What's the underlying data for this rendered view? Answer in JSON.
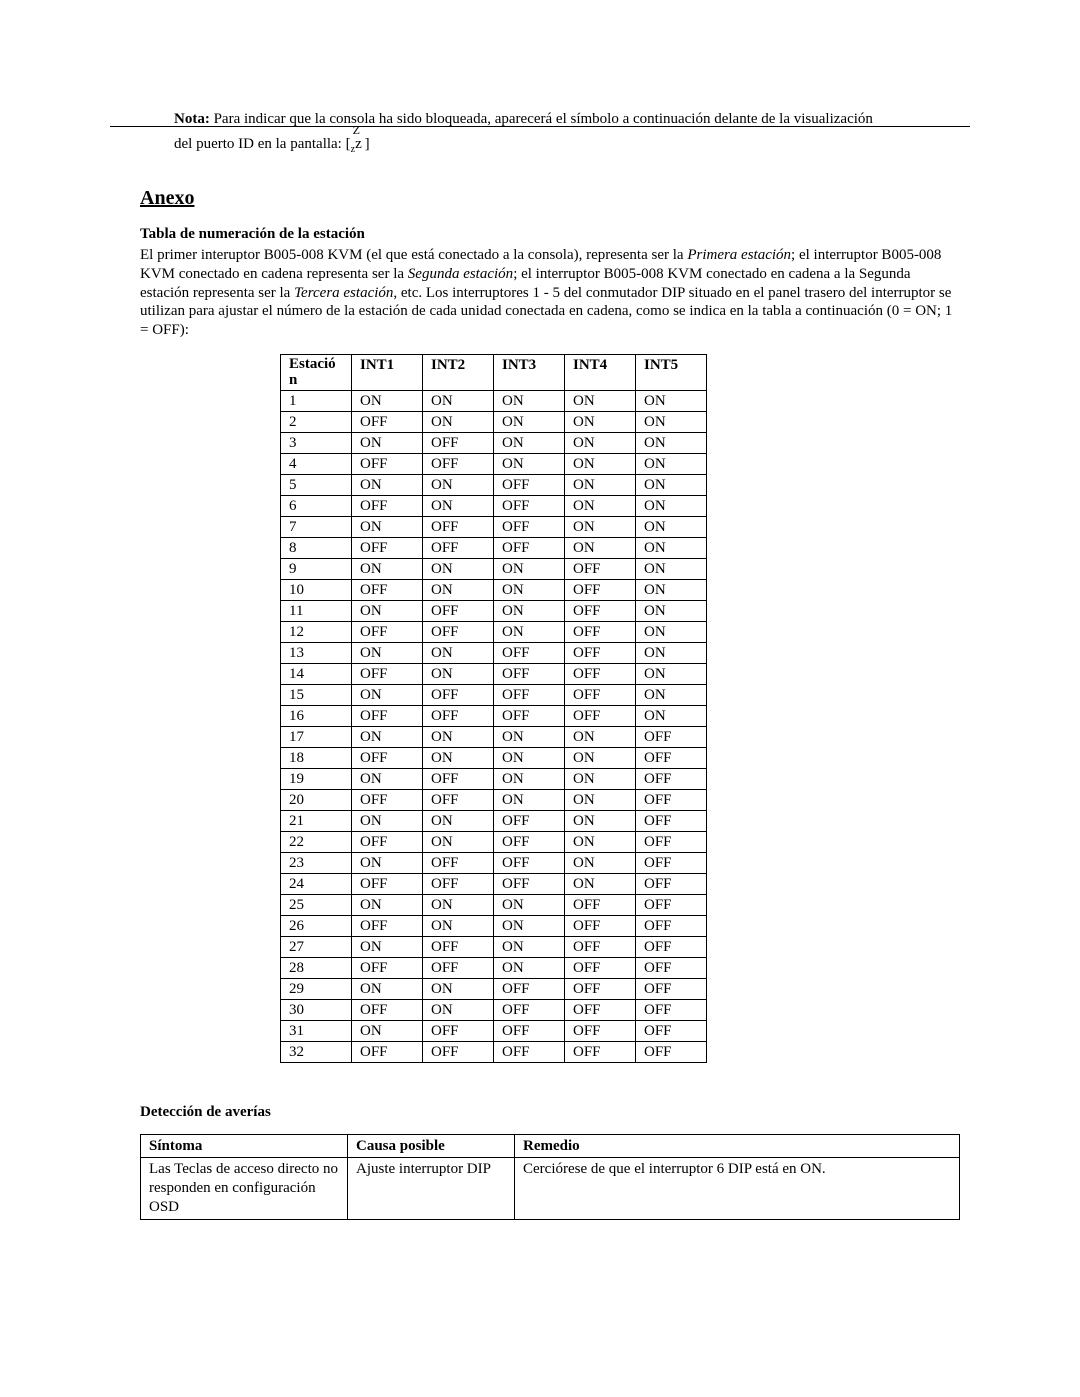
{
  "note": {
    "label": "Nota:",
    "line1": "Para indicar que la consola ha sido bloqueada, aparecerá el símbolo a continuación delante de la visualización",
    "line2_a": "del puerto ID en la pantalla: [",
    "line2_b": "]",
    "z_top": "Z",
    "z_sub": "z",
    "z_mid": "z"
  },
  "anexo_heading": "Anexo",
  "station_section_title": "Tabla de numeración de la estación",
  "intro": {
    "p1a": "El primer interuptor B005-008 KVM (el que está conectado a la consola), representa ser la ",
    "p1b": "Primera estación",
    "p1c": "; el interruptor B005-008 KVM conectado en cadena representa ser la ",
    "p1d": "Segunda estación",
    "p1e": "; el interruptor B005-008 KVM conectado en cadena a la Segunda estación representa ser la ",
    "p1f": "Tercera estación",
    "p1g": ", etc. Los interruptores 1 - 5 del conmutador DIP situado en el panel trasero del interruptor se utilizan para ajustar el número de la estación de cada unidad conectada en cadena, como se indica en la tabla a continuación (0 = ON; 1 = OFF):"
  },
  "station_table": {
    "headers": [
      "Estación",
      "INT1",
      "INT2",
      "INT3",
      "INT4",
      "INT5"
    ],
    "header0_line1": "Estació",
    "header0_line2": "n",
    "rows": [
      [
        "1",
        "ON",
        "ON",
        "ON",
        "ON",
        "ON"
      ],
      [
        "2",
        "OFF",
        "ON",
        "ON",
        "ON",
        "ON"
      ],
      [
        "3",
        "ON",
        "OFF",
        "ON",
        "ON",
        "ON"
      ],
      [
        "4",
        "OFF",
        "OFF",
        "ON",
        "ON",
        "ON"
      ],
      [
        "5",
        "ON",
        "ON",
        "OFF",
        "ON",
        "ON"
      ],
      [
        "6",
        "OFF",
        "ON",
        "OFF",
        "ON",
        "ON"
      ],
      [
        "7",
        "ON",
        "OFF",
        "OFF",
        "ON",
        "ON"
      ],
      [
        "8",
        "OFF",
        "OFF",
        "OFF",
        "ON",
        "ON"
      ],
      [
        "9",
        "ON",
        "ON",
        "ON",
        "OFF",
        "ON"
      ],
      [
        "10",
        "OFF",
        "ON",
        "ON",
        "OFF",
        "ON"
      ],
      [
        "11",
        "ON",
        "OFF",
        "ON",
        "OFF",
        "ON"
      ],
      [
        "12",
        "OFF",
        "OFF",
        "ON",
        "OFF",
        "ON"
      ],
      [
        "13",
        "ON",
        "ON",
        "OFF",
        "OFF",
        "ON"
      ],
      [
        "14",
        "OFF",
        "ON",
        "OFF",
        "OFF",
        "ON"
      ],
      [
        "15",
        "ON",
        "OFF",
        "OFF",
        "OFF",
        "ON"
      ],
      [
        "16",
        "OFF",
        "OFF",
        "OFF",
        "OFF",
        "ON"
      ],
      [
        "17",
        "ON",
        "ON",
        "ON",
        "ON",
        "OFF"
      ],
      [
        "18",
        "OFF",
        "ON",
        "ON",
        "ON",
        "OFF"
      ],
      [
        "19",
        "ON",
        "OFF",
        "ON",
        "ON",
        "OFF"
      ],
      [
        "20",
        "OFF",
        "OFF",
        "ON",
        "ON",
        "OFF"
      ],
      [
        "21",
        "ON",
        "ON",
        "OFF",
        "ON",
        "OFF"
      ],
      [
        "22",
        "OFF",
        "ON",
        "OFF",
        "ON",
        "OFF"
      ],
      [
        "23",
        "ON",
        "OFF",
        "OFF",
        "ON",
        "OFF"
      ],
      [
        "24",
        "OFF",
        "OFF",
        "OFF",
        "ON",
        "OFF"
      ],
      [
        "25",
        "ON",
        "ON",
        "ON",
        "OFF",
        "OFF"
      ],
      [
        "26",
        "OFF",
        "ON",
        "ON",
        "OFF",
        "OFF"
      ],
      [
        "27",
        "ON",
        "OFF",
        "ON",
        "OFF",
        "OFF"
      ],
      [
        "28",
        "OFF",
        "OFF",
        "ON",
        "OFF",
        "OFF"
      ],
      [
        "29",
        "ON",
        "ON",
        "OFF",
        "OFF",
        "OFF"
      ],
      [
        "30",
        "OFF",
        "ON",
        "OFF",
        "OFF",
        "OFF"
      ],
      [
        "31",
        "ON",
        "OFF",
        "OFF",
        "OFF",
        "OFF"
      ],
      [
        "32",
        "OFF",
        "OFF",
        "OFF",
        "OFF",
        "OFF"
      ]
    ]
  },
  "troubleshoot_title": "Detección de averías",
  "troubleshoot_table": {
    "headers": [
      "Síntoma",
      "Causa posible",
      "Remedio"
    ],
    "row1": {
      "symptom": "Las Teclas de acceso directo no responden en configuración OSD",
      "cause": "Ajuste interruptor DIP",
      "remedy": "Cerciórese de que el interruptor 6 DIP está en ON."
    },
    "col_widths": [
      "190px",
      "150px",
      "auto"
    ]
  }
}
